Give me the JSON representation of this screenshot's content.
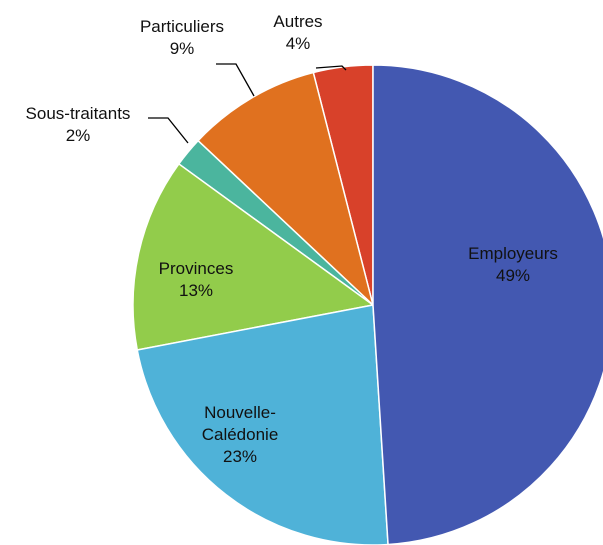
{
  "chart_data": {
    "type": "pie",
    "categories": [
      "Employeurs",
      "Nouvelle-Calédonie",
      "Provinces",
      "Sous-traitants",
      "Particuliers",
      "Autres"
    ],
    "values": [
      49,
      23,
      13,
      2,
      9,
      4
    ],
    "value_labels": [
      "49%",
      "23%",
      "13%",
      "2%",
      "9%",
      "4%"
    ],
    "colors": [
      "#4358b1",
      "#4fb2d8",
      "#92cc4b",
      "#4bb59e",
      "#e0711f",
      "#d8412a"
    ]
  }
}
